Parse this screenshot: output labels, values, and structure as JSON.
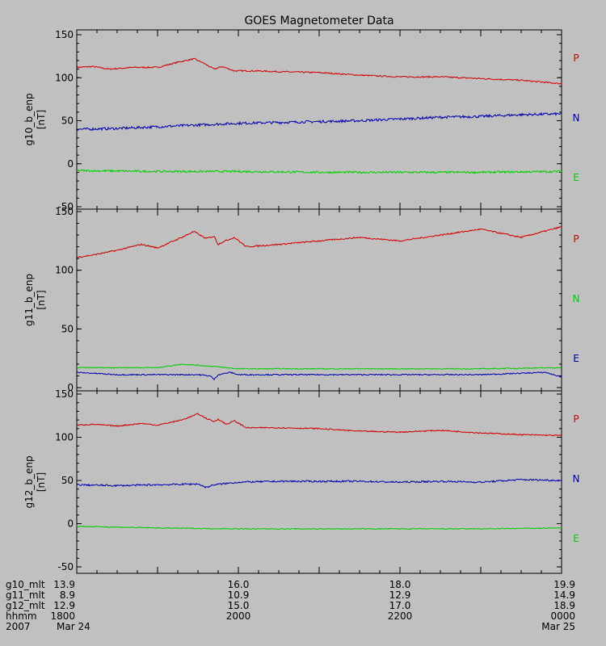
{
  "chart_data": {
    "type": "line",
    "title": "GOES Magnetometer Data",
    "x_range_hours": [
      0,
      6
    ],
    "panels": [
      {
        "ylabel": "g10_b_enp",
        "yunit": "[nT]",
        "ylim": [
          -50,
          150
        ],
        "yticks": [
          "150",
          "100",
          "50",
          "0",
          "-50"
        ],
        "legend": [
          "P",
          "N",
          "E"
        ],
        "series": [
          {
            "name": "P",
            "color": "#cc0000",
            "x": [
              0,
              0.2,
              0.4,
              0.7,
              1.0,
              1.25,
              1.45,
              1.55,
              1.7,
              1.8,
              1.95,
              2.2,
              2.5,
              3.0,
              3.5,
              4.0,
              4.5,
              5.0,
              5.5,
              6.0
            ],
            "y": [
              112,
              113,
              110,
              112,
              112,
              118,
              122,
              118,
              110,
              113,
              108,
              108,
              107,
              106,
              103,
              101,
              101,
              99,
              97,
              93
            ],
            "noise": 0.8
          },
          {
            "name": "N",
            "color": "#0000aa",
            "x": [
              0,
              0.5,
              1.0,
              1.5,
              2.0,
              2.5,
              3.0,
              3.5,
              4.0,
              4.5,
              5.0,
              5.5,
              6.0
            ],
            "y": [
              40,
              41,
              43,
              45,
              47,
              48,
              49,
              50,
              52,
              54,
              55,
              57,
              58
            ],
            "noise": 1.5
          },
          {
            "name": "E",
            "color": "#00cc00",
            "x": [
              0,
              1.0,
              2.0,
              3.0,
              4.0,
              5.0,
              6.0
            ],
            "y": [
              -8,
              -9,
              -9,
              -10,
              -10,
              -10,
              -9
            ],
            "noise": 1.2
          }
        ]
      },
      {
        "ylabel": "g11_b_enp",
        "yunit": "[nT]",
        "ylim": [
          0,
          150
        ],
        "yticks": [
          "150",
          "100",
          "50",
          "0"
        ],
        "legend": [
          "P",
          "N",
          "E"
        ],
        "series": [
          {
            "name": "P",
            "color": "#cc0000",
            "x": [
              0,
              0.2,
              0.5,
              0.8,
              1.0,
              1.3,
              1.45,
              1.6,
              1.7,
              1.75,
              1.8,
              1.95,
              2.1,
              2.5,
              3.0,
              3.5,
              4.0,
              4.5,
              5.0,
              5.5,
              6.0
            ],
            "y": [
              111,
              113,
              117,
              122,
              119,
              128,
              133,
              127,
              129,
              122,
              124,
              128,
              120,
              122,
              125,
              128,
              125,
              130,
              135,
              128,
              137
            ],
            "noise": 0.6
          },
          {
            "name": "N",
            "color": "#00cc00",
            "x": [
              0,
              1.0,
              1.3,
              1.7,
              2.0,
              3.0,
              4.0,
              5.0,
              6.0
            ],
            "y": [
              17,
              17,
              20,
              18,
              16,
              16,
              16,
              16,
              17
            ],
            "noise": 0.4
          },
          {
            "name": "E",
            "color": "#0000aa",
            "x": [
              0,
              0.5,
              1.0,
              1.5,
              1.65,
              1.7,
              1.75,
              1.9,
              2.0,
              3.0,
              4.0,
              5.0,
              5.8,
              6.0
            ],
            "y": [
              13,
              11,
              11,
              11,
              10,
              7,
              11,
              13,
              11,
              11,
              11,
              11,
              13,
              9
            ],
            "noise": 0.5
          }
        ]
      },
      {
        "ylabel": "g12_b_enp",
        "yunit": "[nT]",
        "ylim": [
          -50,
          150
        ],
        "yticks": [
          "150",
          "100",
          "50",
          "0",
          "-50"
        ],
        "legend": [
          "P",
          "N",
          "E"
        ],
        "series": [
          {
            "name": "P",
            "color": "#cc0000",
            "x": [
              0,
              0.2,
              0.5,
              0.8,
              1.0,
              1.3,
              1.5,
              1.6,
              1.7,
              1.75,
              1.85,
              1.95,
              2.1,
              2.5,
              3.0,
              3.5,
              4.0,
              4.5,
              5.0,
              5.5,
              6.0
            ],
            "y": [
              114,
              115,
              113,
              116,
              114,
              120,
              127,
              122,
              118,
              121,
              115,
              119,
              111,
              111,
              110,
              107,
              106,
              108,
              105,
              103,
              102
            ],
            "noise": 0.7
          },
          {
            "name": "N",
            "color": "#0000aa",
            "x": [
              0,
              0.5,
              1.0,
              1.5,
              1.6,
              1.7,
              2.0,
              2.5,
              3.0,
              3.5,
              4.0,
              4.5,
              5.0,
              5.5,
              6.0
            ],
            "y": [
              45,
              44,
              45,
              46,
              42,
              45,
              48,
              49,
              49,
              49,
              48,
              49,
              48,
              51,
              50
            ],
            "noise": 1.0
          },
          {
            "name": "E",
            "color": "#00cc00",
            "x": [
              0,
              0.5,
              1.0,
              2.0,
              3.0,
              4.0,
              5.0,
              6.0
            ],
            "y": [
              -3,
              -4,
              -5,
              -6,
              -6,
              -6,
              -6,
              -5
            ],
            "noise": 0.6
          }
        ]
      }
    ],
    "time_axis": {
      "row_labels": [
        "g10_mlt",
        "g11_mlt",
        "g12_mlt",
        "hhmm",
        "2007"
      ],
      "columns": [
        {
          "x": 0,
          "values": [
            "13.9",
            "8.9",
            "12.9",
            "1800",
            "Mar 24"
          ]
        },
        {
          "x": 2,
          "values": [
            "16.0",
            "10.9",
            "15.0",
            "2000",
            ""
          ]
        },
        {
          "x": 4,
          "values": [
            "18.0",
            "12.9",
            "17.0",
            "2200",
            ""
          ]
        },
        {
          "x": 6,
          "values": [
            "19.9",
            "14.9",
            "18.9",
            "0000",
            "Mar 25"
          ]
        }
      ]
    }
  }
}
